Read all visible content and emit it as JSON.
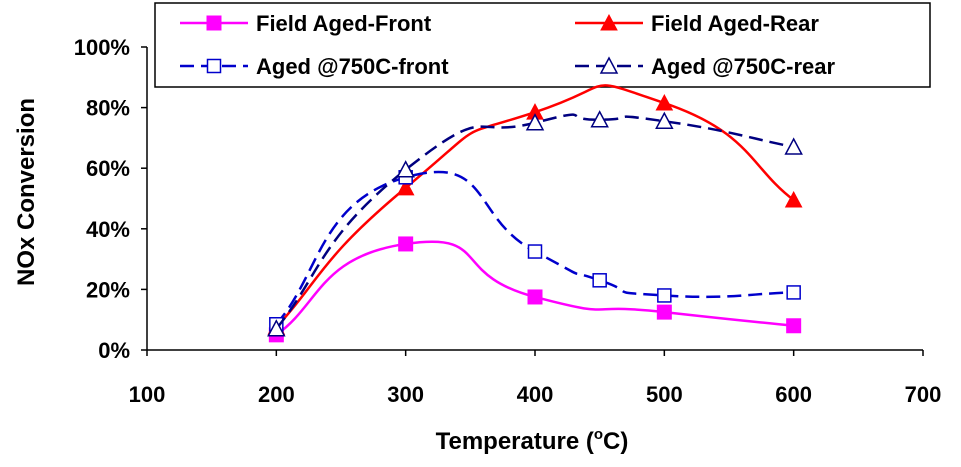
{
  "chart_data": {
    "type": "line",
    "xlabel": "Temperature (",
    "xlabel_sup": "o",
    "xlabel_tail": "C)",
    "ylabel": "NOx Conversion",
    "xlim": [
      100,
      700
    ],
    "ylim": [
      0,
      100
    ],
    "x_ticks": [
      "100",
      "200",
      "300",
      "400",
      "500",
      "600",
      "700"
    ],
    "y_ticks": [
      "0%",
      "20%",
      "40%",
      "60%",
      "80%",
      "100%"
    ],
    "grid": false,
    "legend_position": "top",
    "series": [
      {
        "name": "Field Aged-Front",
        "color": "#ff00ff",
        "line_style": "solid",
        "marker": "filled-square",
        "x": [
          200,
          300,
          400,
          500,
          600
        ],
        "y": [
          5,
          35,
          17.5,
          12.5,
          8
        ]
      },
      {
        "name": "Field Aged-Rear",
        "color": "#ff0000",
        "line_style": "solid",
        "marker": "filled-triangle",
        "x": [
          200,
          300,
          400,
          500,
          600
        ],
        "y": [
          7.5,
          53.5,
          78.5,
          81.5,
          49.5
        ]
      },
      {
        "name": "Aged @750C-front",
        "color": "#0000cc",
        "line_style": "dashed",
        "marker": "open-square",
        "x": [
          200,
          300,
          400,
          450,
          500,
          600
        ],
        "y": [
          8.5,
          57,
          32.5,
          23,
          18,
          19
        ]
      },
      {
        "name": "Aged @750C-rear",
        "color": "#000080",
        "line_style": "dashed",
        "marker": "open-triangle",
        "x": [
          200,
          300,
          400,
          450,
          500,
          600
        ],
        "y": [
          7,
          59.5,
          75,
          76,
          75.5,
          67
        ]
      }
    ]
  }
}
